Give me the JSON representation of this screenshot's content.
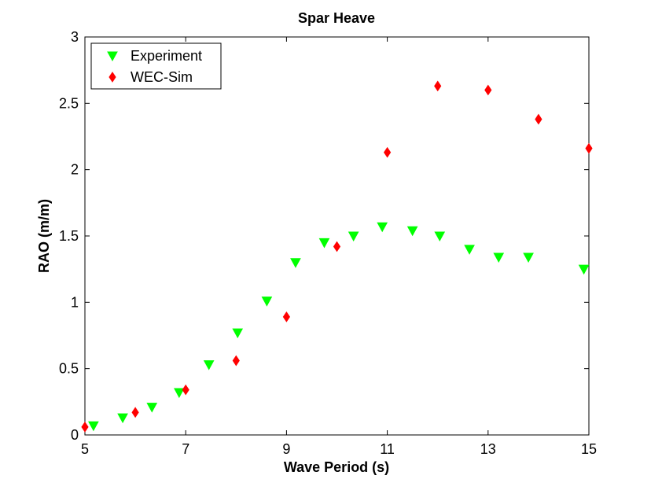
{
  "chart_data": {
    "type": "scatter",
    "title": "Spar Heave",
    "xlabel": "Wave Period (s)",
    "ylabel": "RAO (m/m)",
    "xlim": [
      5,
      15
    ],
    "ylim": [
      0,
      3
    ],
    "xticks": [
      5,
      7,
      9,
      11,
      13,
      15
    ],
    "yticks": [
      0,
      0.5,
      1,
      1.5,
      2,
      2.5,
      3
    ],
    "grid": false,
    "legend_position": "top-left",
    "series": [
      {
        "name": "Experiment",
        "marker": "triangle-down",
        "color": "#00ff00",
        "x": [
          5.17,
          5.75,
          6.33,
          6.87,
          7.46,
          8.03,
          8.61,
          9.18,
          9.75,
          10.33,
          10.9,
          11.5,
          12.04,
          12.63,
          13.21,
          13.8,
          14.9
        ],
        "y": [
          0.07,
          0.13,
          0.21,
          0.32,
          0.53,
          0.77,
          1.01,
          1.3,
          1.45,
          1.5,
          1.57,
          1.54,
          1.5,
          1.4,
          1.34,
          1.34,
          1.25
        ]
      },
      {
        "name": "WEC-Sim",
        "marker": "diamond",
        "color": "#ff0000",
        "x": [
          5,
          6,
          7,
          8,
          9,
          10,
          11,
          12,
          13,
          14,
          15
        ],
        "y": [
          0.06,
          0.17,
          0.34,
          0.56,
          0.89,
          1.42,
          2.13,
          2.63,
          2.6,
          2.38,
          2.16
        ]
      }
    ]
  }
}
